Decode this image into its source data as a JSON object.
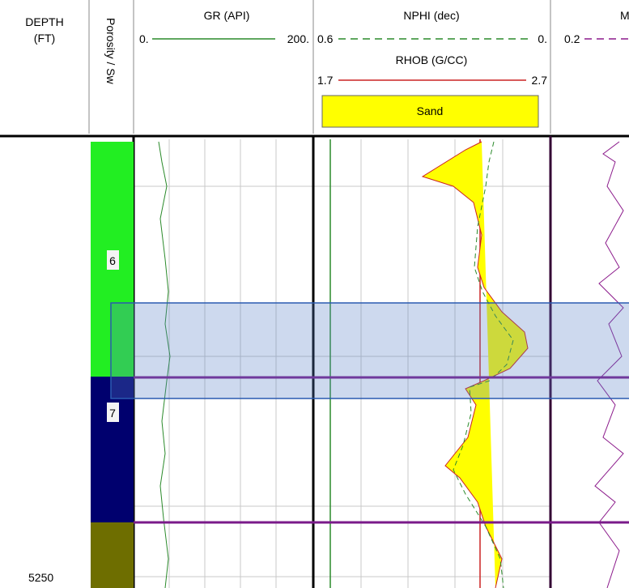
{
  "header": {
    "depth": {
      "line1": "DEPTH",
      "line2": "(FT)"
    },
    "zone_track": "Porosity / Sw",
    "gr": {
      "name": "GR (API)",
      "left": "0.",
      "right": "200."
    },
    "nphi": {
      "name": "NPHI (dec)",
      "left": "0.6",
      "right": "0."
    },
    "rhob": {
      "name": "RHOB (G/CC)",
      "left": "1.7",
      "right": "2.7"
    },
    "fill_legend": "Sand",
    "next_track": {
      "name": "M",
      "left": "0.2"
    }
  },
  "zones": [
    {
      "label": "6"
    },
    {
      "label": "7"
    }
  ],
  "depth_labels": [
    "5250"
  ]
}
